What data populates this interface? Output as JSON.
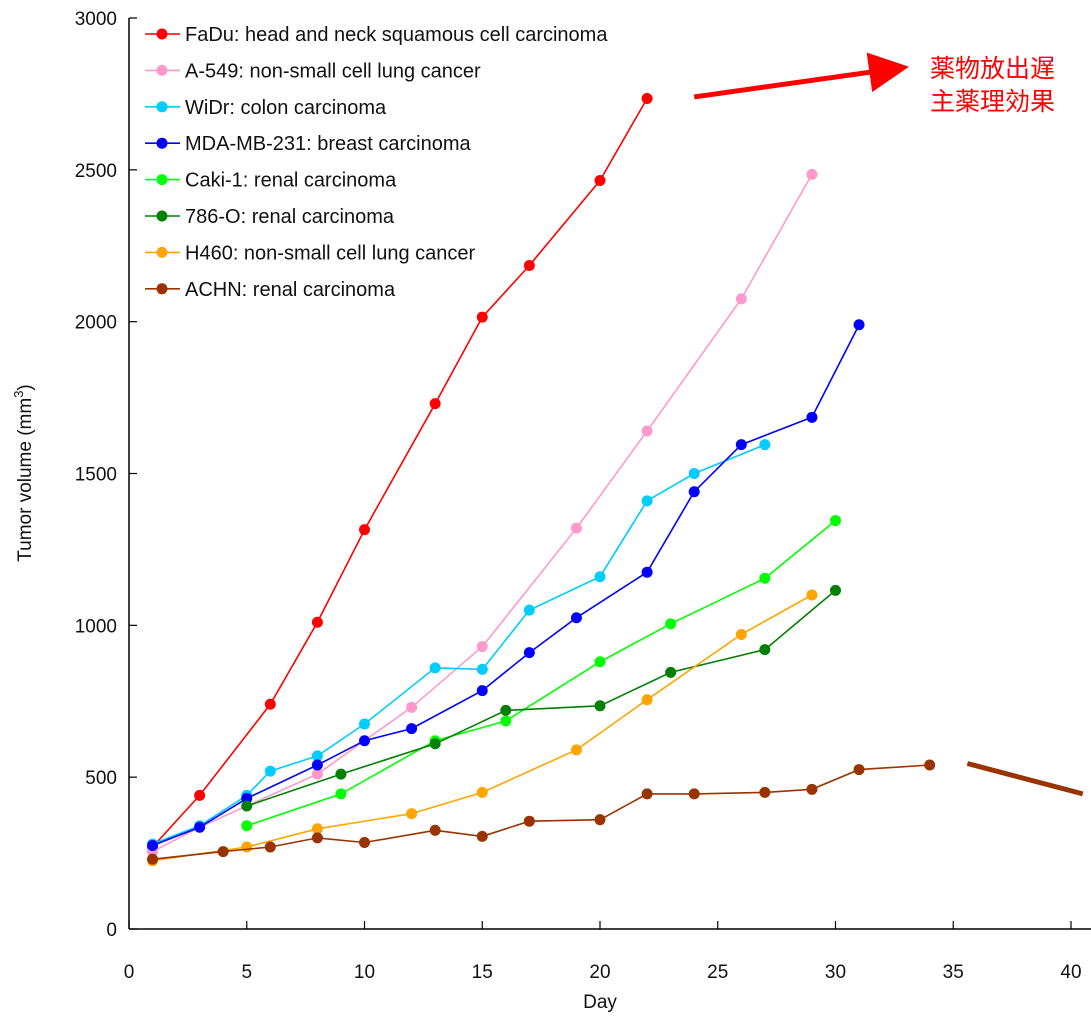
{
  "chart_data": {
    "type": "line",
    "title": "",
    "xlabel": "Day",
    "ylabel": "Tumor volume (mm",
    "ylabel_superscript": "3",
    "ylabel_close": ")",
    "xlim": [
      0,
      40
    ],
    "ylim": [
      0,
      3000
    ],
    "xticks": [
      "0",
      "5",
      "10",
      "15",
      "20",
      "25",
      "30",
      "35",
      "40"
    ],
    "yticks": [
      "0",
      "500",
      "1000",
      "1500",
      "2000",
      "2500",
      "3000"
    ],
    "grid": false,
    "legend_position": "top-left",
    "series": [
      {
        "name": "FaDu: head and neck squamous cell carcinoma",
        "color": "#ff0000",
        "points": [
          [
            1,
            270
          ],
          [
            3,
            440
          ],
          [
            6,
            740
          ],
          [
            8,
            1010
          ],
          [
            10,
            1315
          ],
          [
            13,
            1730
          ],
          [
            15,
            2015
          ],
          [
            17,
            2185
          ],
          [
            20,
            2465
          ],
          [
            22,
            2735
          ]
        ]
      },
      {
        "name": "A-549: non-small cell lung cancer",
        "color": "#ff99cc",
        "points": [
          [
            1,
            255
          ],
          [
            3,
            335
          ],
          [
            8,
            510
          ],
          [
            12,
            730
          ],
          [
            15,
            930
          ],
          [
            19,
            1320
          ],
          [
            22,
            1640
          ],
          [
            26,
            2075
          ],
          [
            29,
            2485
          ]
        ]
      },
      {
        "name": "WiDr: colon carcinoma",
        "color": "#00ccff",
        "points": [
          [
            1,
            280
          ],
          [
            3,
            340
          ],
          [
            5,
            440
          ],
          [
            6,
            520
          ],
          [
            8,
            570
          ],
          [
            10,
            675
          ],
          [
            13,
            860
          ],
          [
            15,
            855
          ],
          [
            17,
            1050
          ],
          [
            20,
            1160
          ],
          [
            22,
            1410
          ],
          [
            24,
            1500
          ],
          [
            27,
            1595
          ]
        ]
      },
      {
        "name": "MDA-MB-231: breast carcinoma",
        "color": "#0000ff",
        "points": [
          [
            1,
            275
          ],
          [
            3,
            335
          ],
          [
            5,
            430
          ],
          [
            8,
            540
          ],
          [
            10,
            620
          ],
          [
            12,
            660
          ],
          [
            15,
            785
          ],
          [
            17,
            910
          ],
          [
            19,
            1025
          ],
          [
            22,
            1175
          ],
          [
            24,
            1440
          ],
          [
            26,
            1595
          ],
          [
            29,
            1685
          ],
          [
            31,
            1990
          ]
        ]
      },
      {
        "name": "Caki-1: renal carcinoma",
        "color": "#00ff00",
        "points": [
          [
            5,
            340
          ],
          [
            9,
            445
          ],
          [
            13,
            620
          ],
          [
            16,
            685
          ],
          [
            20,
            880
          ],
          [
            23,
            1005
          ],
          [
            27,
            1155
          ],
          [
            30,
            1345
          ]
        ]
      },
      {
        "name": "786-O: renal carcinoma",
        "color": "#008000",
        "points": [
          [
            5,
            405
          ],
          [
            9,
            510
          ],
          [
            13,
            610
          ],
          [
            16,
            720
          ],
          [
            20,
            735
          ],
          [
            23,
            845
          ],
          [
            27,
            920
          ],
          [
            30,
            1115
          ]
        ]
      },
      {
        "name": "H460: non-small cell lung cancer",
        "color": "#ffa500",
        "points": [
          [
            1,
            225
          ],
          [
            5,
            270
          ],
          [
            8,
            330
          ],
          [
            12,
            380
          ],
          [
            15,
            450
          ],
          [
            19,
            590
          ],
          [
            22,
            755
          ],
          [
            26,
            970
          ],
          [
            29,
            1100
          ]
        ]
      },
      {
        "name": "ACHN: renal carcinoma",
        "color": "#993300",
        "points": [
          [
            1,
            230
          ],
          [
            4,
            255
          ],
          [
            6,
            270
          ],
          [
            8,
            300
          ],
          [
            10,
            285
          ],
          [
            13,
            325
          ],
          [
            15,
            305
          ],
          [
            17,
            355
          ],
          [
            20,
            360
          ],
          [
            22,
            445
          ],
          [
            24,
            445
          ],
          [
            27,
            450
          ],
          [
            29,
            460
          ],
          [
            31,
            525
          ],
          [
            34,
            540
          ]
        ]
      }
    ],
    "annotations": [
      {
        "lines": [
          "薬物放出遅",
          "主薬理効果"
        ],
        "color": "#ff0000",
        "arrow_color": "#ff0000",
        "arrow_from": [
          24,
          2740
        ],
        "arrow_to": [
          32.7,
          2835
        ]
      },
      {
        "arrow_color": "#993300",
        "arrow_from": [
          35.6,
          545
        ],
        "arrow_to": [
          40.5,
          445
        ]
      }
    ]
  }
}
